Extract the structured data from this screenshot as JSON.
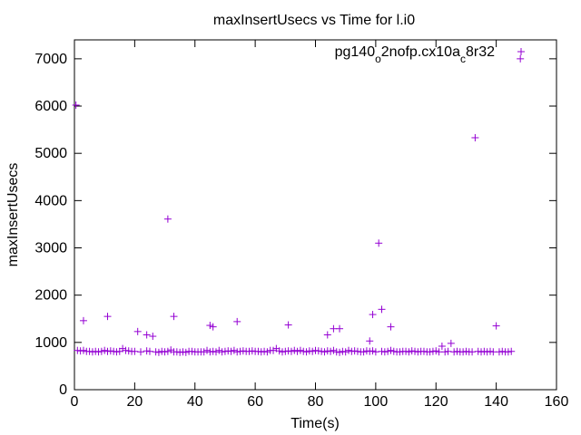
{
  "chart_data": {
    "type": "scatter",
    "title": "maxInsertUsecs vs Time for l.i0",
    "xlabel": "Time(s)",
    "ylabel": "maxInsertUsecs",
    "xlim": [
      0,
      160
    ],
    "ylim": [
      0,
      7400
    ],
    "x_ticks": [
      0,
      20,
      40,
      60,
      80,
      100,
      120,
      140,
      160
    ],
    "y_ticks": [
      0,
      1000,
      2000,
      3000,
      4000,
      5000,
      6000,
      7000
    ],
    "grid": false,
    "legend_position": "top-right",
    "series": [
      {
        "name": "pg140_o2nofp.cx10a_c8r32",
        "marker": "plus",
        "color": "#9400d3",
        "points": [
          [
            1,
            830
          ],
          [
            2,
            820
          ],
          [
            3,
            830
          ],
          [
            4,
            810
          ],
          [
            5,
            810
          ],
          [
            6,
            800
          ],
          [
            7,
            810
          ],
          [
            8,
            800
          ],
          [
            9,
            810
          ],
          [
            10,
            830
          ],
          [
            11,
            810
          ],
          [
            12,
            820
          ],
          [
            13,
            810
          ],
          [
            14,
            800
          ],
          [
            15,
            810
          ],
          [
            16,
            870
          ],
          [
            17,
            830
          ],
          [
            18,
            820
          ],
          [
            19,
            810
          ],
          [
            20,
            810
          ],
          [
            22,
            800
          ],
          [
            24,
            820
          ],
          [
            25,
            810
          ],
          [
            27,
            800
          ],
          [
            28,
            790
          ],
          [
            29,
            810
          ],
          [
            30,
            800
          ],
          [
            31,
            810
          ],
          [
            32,
            840
          ],
          [
            33,
            800
          ],
          [
            34,
            800
          ],
          [
            35,
            790
          ],
          [
            36,
            800
          ],
          [
            37,
            790
          ],
          [
            38,
            810
          ],
          [
            39,
            810
          ],
          [
            40,
            800
          ],
          [
            41,
            800
          ],
          [
            42,
            800
          ],
          [
            43,
            800
          ],
          [
            44,
            830
          ],
          [
            45,
            800
          ],
          [
            46,
            810
          ],
          [
            47,
            800
          ],
          [
            48,
            830
          ],
          [
            49,
            800
          ],
          [
            50,
            810
          ],
          [
            51,
            820
          ],
          [
            52,
            810
          ],
          [
            53,
            830
          ],
          [
            54,
            800
          ],
          [
            55,
            810
          ],
          [
            56,
            820
          ],
          [
            57,
            810
          ],
          [
            58,
            810
          ],
          [
            59,
            820
          ],
          [
            60,
            810
          ],
          [
            61,
            810
          ],
          [
            62,
            800
          ],
          [
            63,
            810
          ],
          [
            64,
            800
          ],
          [
            65,
            830
          ],
          [
            66,
            830
          ],
          [
            67,
            870
          ],
          [
            68,
            820
          ],
          [
            69,
            800
          ],
          [
            70,
            810
          ],
          [
            71,
            820
          ],
          [
            72,
            810
          ],
          [
            73,
            830
          ],
          [
            74,
            810
          ],
          [
            75,
            830
          ],
          [
            76,
            810
          ],
          [
            77,
            800
          ],
          [
            78,
            820
          ],
          [
            79,
            810
          ],
          [
            80,
            830
          ],
          [
            81,
            820
          ],
          [
            82,
            810
          ],
          [
            83,
            800
          ],
          [
            84,
            820
          ],
          [
            85,
            810
          ],
          [
            86,
            830
          ],
          [
            87,
            800
          ],
          [
            88,
            790
          ],
          [
            89,
            810
          ],
          [
            90,
            800
          ],
          [
            91,
            830
          ],
          [
            92,
            810
          ],
          [
            93,
            820
          ],
          [
            94,
            810
          ],
          [
            95,
            800
          ],
          [
            96,
            800
          ],
          [
            97,
            820
          ],
          [
            98,
            810
          ],
          [
            99,
            820
          ],
          [
            100,
            800
          ],
          [
            102,
            810
          ],
          [
            103,
            800
          ],
          [
            104,
            810
          ],
          [
            105,
            830
          ],
          [
            106,
            810
          ],
          [
            107,
            800
          ],
          [
            108,
            800
          ],
          [
            109,
            810
          ],
          [
            110,
            810
          ],
          [
            111,
            800
          ],
          [
            112,
            820
          ],
          [
            113,
            810
          ],
          [
            114,
            800
          ],
          [
            115,
            810
          ],
          [
            116,
            810
          ],
          [
            117,
            800
          ],
          [
            118,
            800
          ],
          [
            119,
            810
          ],
          [
            120,
            820
          ],
          [
            121,
            800
          ],
          [
            123,
            800
          ],
          [
            124,
            810
          ],
          [
            126,
            800
          ],
          [
            127,
            810
          ],
          [
            128,
            800
          ],
          [
            129,
            800
          ],
          [
            130,
            810
          ],
          [
            131,
            800
          ],
          [
            132,
            800
          ],
          [
            134,
            810
          ],
          [
            135,
            800
          ],
          [
            136,
            810
          ],
          [
            137,
            800
          ],
          [
            138,
            810
          ],
          [
            139,
            800
          ],
          [
            141,
            800
          ],
          [
            142,
            810
          ],
          [
            143,
            800
          ],
          [
            144,
            800
          ],
          [
            145,
            810
          ],
          [
            0.5,
            6020
          ],
          [
            3,
            1460
          ],
          [
            11,
            1550
          ],
          [
            21,
            1230
          ],
          [
            24,
            1160
          ],
          [
            26,
            1130
          ],
          [
            31,
            3610
          ],
          [
            33,
            1550
          ],
          [
            45,
            1360
          ],
          [
            46,
            1330
          ],
          [
            54,
            1440
          ],
          [
            71,
            1370
          ],
          [
            84,
            1160
          ],
          [
            86,
            1290
          ],
          [
            88,
            1290
          ],
          [
            98,
            1030
          ],
          [
            99,
            1590
          ],
          [
            101,
            3100
          ],
          [
            102,
            1700
          ],
          [
            105,
            1330
          ],
          [
            122,
            920
          ],
          [
            125,
            980
          ],
          [
            133,
            5330
          ],
          [
            140,
            1350
          ],
          [
            148,
            7000
          ]
        ]
      }
    ]
  }
}
